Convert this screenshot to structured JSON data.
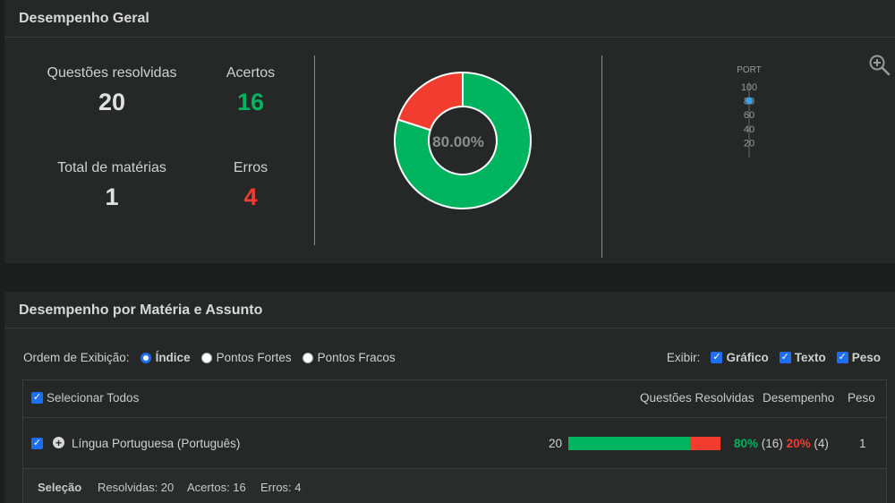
{
  "colors": {
    "success": "#00b35f",
    "error": "#f13c2f",
    "accent": "#1e6ff0",
    "bg": "#262727"
  },
  "overview": {
    "title": "Desempenho Geral",
    "questions_label": "Questões resolvidas",
    "questions_value": "20",
    "hits_label": "Acertos",
    "hits_value": "16",
    "subjects_label": "Total de matérias",
    "subjects_value": "1",
    "errors_label": "Erros",
    "errors_value": "4",
    "donut_center": "80.00%",
    "donut": {
      "hits": 16,
      "errors": 4
    },
    "zoom_icon": "zoom-in-icon"
  },
  "chart_data": {
    "type": "scatter",
    "categories": [
      "PORT"
    ],
    "values": [
      80
    ],
    "ylim": [
      0,
      100
    ],
    "yticks": [
      "100",
      "80",
      "60",
      "40",
      "20"
    ]
  },
  "subjects": {
    "title": "Desempenho por Matéria e Assunto",
    "order_label": "Ordem de Exibição:",
    "order_options": [
      "Índice",
      "Pontos Fortes",
      "Pontos Fracos"
    ],
    "order_selected": 0,
    "show_label": "Exibir:",
    "show_options": [
      "Gráfico",
      "Texto",
      "Peso"
    ],
    "select_all": "Selecionar Todos",
    "columns": {
      "questions": "Questões Resolvidas",
      "performance": "Desempenho",
      "weight": "Peso"
    },
    "rows": [
      {
        "name": "Língua Portuguesa (Português)",
        "questions": "20",
        "hit_pct": "80%",
        "hit_count": "(16)",
        "err_pct": "20%",
        "err_count": "(4)",
        "weight": "1",
        "hit_fraction": 0.8
      }
    ],
    "footer": {
      "label": "Seleção",
      "resolved": "Resolvidas: 20",
      "hits": "Acertos: 16",
      "errors": "Erros: 4"
    }
  }
}
